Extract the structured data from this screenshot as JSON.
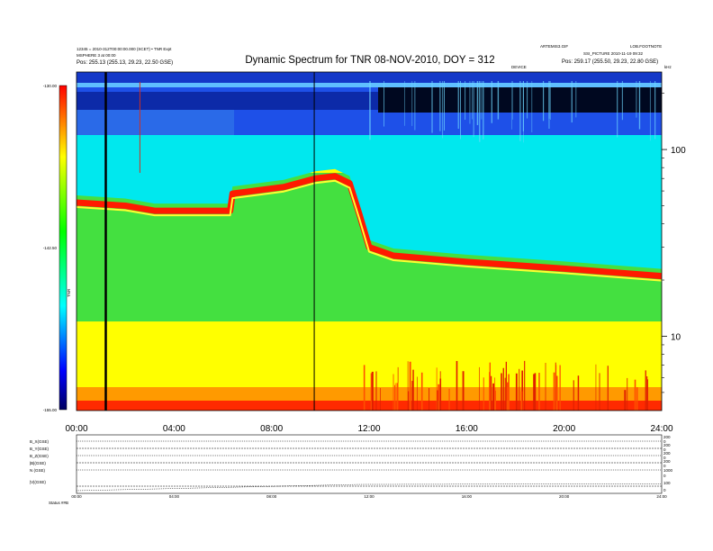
{
  "chart_data": {
    "type": "heatmap",
    "title": "Dynamic Spectrum for TNR 08-NOV-2010, DOY = 312",
    "header_left": [
      "12345 = 2010-312T00:00:00.000 (SCET) • TNR Expt",
      "MSPHERE 3 at 00:00",
      "Pos:  255.13 (255.13, 29.23, 22.50 GSE)"
    ],
    "header_right": [
      "ARTEMIS3.GIF",
      "LOB.FOOTNOTE",
      "SSI_PICTURE 2010-11-19 09:32",
      "Pos:  259.17 (255.50, 29.23, 22.80 GSE)"
    ],
    "top_label": "DEVICE",
    "x_axis": {
      "unit": "hours",
      "range": [
        0,
        24
      ],
      "tick_labels": [
        "00:00",
        "04:00",
        "08:00",
        "12:00",
        "16:00",
        "20:00",
        "24:00"
      ],
      "tick_values": [
        0,
        4,
        8,
        12,
        16,
        20,
        24
      ]
    },
    "y_axis": {
      "scale": "log",
      "unit": "kHz",
      "range": [
        4,
        260
      ],
      "tick_labels": [
        "10",
        "100"
      ],
      "tick_values": [
        10,
        100
      ],
      "corner_label": "kHz"
    },
    "colorbar": {
      "label": "TNR",
      "range": [
        -155,
        -130
      ],
      "tick_labels": [
        "-130.00",
        "-142.50",
        "-155.00"
      ],
      "tick_values": [
        -130,
        -142.5,
        -155
      ],
      "colors": [
        "#000060",
        "#0000ff",
        "#00ffff",
        "#00ff00",
        "#ffff00",
        "#ff0000"
      ]
    },
    "features": {
      "red_cutoff_band": [
        {
          "t": 0,
          "f": 52
        },
        {
          "t": 2,
          "f": 50
        },
        {
          "t": 3.2,
          "f": 47
        },
        {
          "t": 4.5,
          "f": 47
        },
        {
          "t": 6.3,
          "f": 47
        },
        {
          "t": 6.4,
          "f": 58
        },
        {
          "t": 8.5,
          "f": 63
        },
        {
          "t": 9.8,
          "f": 70
        },
        {
          "t": 10.6,
          "f": 72
        },
        {
          "t": 11.2,
          "f": 66
        },
        {
          "t": 11.6,
          "f": 45
        },
        {
          "t": 12.0,
          "f": 30
        },
        {
          "t": 13,
          "f": 27
        },
        {
          "t": 16,
          "f": 25
        },
        {
          "t": 20,
          "f": 23
        },
        {
          "t": 24,
          "f": 21
        }
      ],
      "vertical_markers_hours": [
        1.2,
        9.75
      ],
      "thin_red_marker": {
        "t": 2.6,
        "f_top": 230,
        "f_bottom": 75
      }
    },
    "bottom_panel": {
      "left_labels": [
        "B_X(GSE)",
        "B_Y(GSE)",
        "B_Z(GSE)",
        "|B|(GSE)",
        "N (GSE)",
        "|V|(GSE)"
      ],
      "right_labels": [
        "200",
        "0",
        "200",
        "0",
        "200",
        "0",
        "200",
        "0",
        "1000",
        "0",
        "100",
        "0"
      ],
      "time_labels": [
        "00:00",
        "04:00",
        "08:00",
        "12:00",
        "16:00",
        "20:00",
        "24:00"
      ],
      "footer_label": "Status  ##B"
    }
  }
}
